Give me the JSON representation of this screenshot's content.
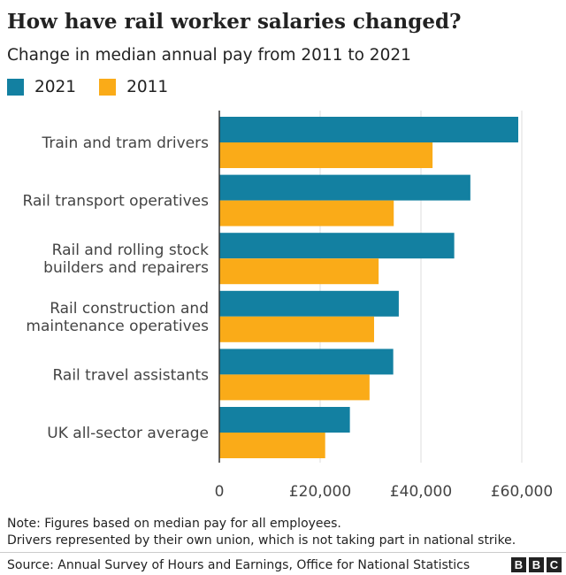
{
  "header": {
    "title": "How have rail worker salaries changed?",
    "subtitle": "Change in median annual pay from 2011 to 2021"
  },
  "legend": [
    {
      "label": "2021",
      "color": "#1380A1"
    },
    {
      "label": "2011",
      "color": "#FAAB18"
    }
  ],
  "chart_data": {
    "type": "bar",
    "orientation": "horizontal",
    "categories": [
      [
        "Train and tram drivers"
      ],
      [
        "Rail transport operatives"
      ],
      [
        "Rail and rolling stock",
        "builders and repairers"
      ],
      [
        "Rail construction and",
        "maintenance operatives"
      ],
      [
        "Rail travel assistants"
      ],
      [
        "UK all-sector average"
      ]
    ],
    "series": [
      {
        "name": "2021",
        "color": "#1380A1",
        "values": [
          59300,
          49800,
          46600,
          35600,
          34500,
          25900
        ]
      },
      {
        "name": "2011",
        "color": "#FAAB18",
        "values": [
          42300,
          34600,
          31600,
          30700,
          29800,
          21000
        ]
      }
    ],
    "xlim": [
      0,
      60000
    ],
    "xticks": [
      {
        "value": 0,
        "label": "0"
      },
      {
        "value": 20000,
        "label": "£20,000"
      },
      {
        "value": 40000,
        "label": "£40,000"
      },
      {
        "value": 60000,
        "label": "£60,000"
      }
    ],
    "grid": true,
    "legend_position": "top-left"
  },
  "notes": [
    "Note: Figures based on median pay for all employees.",
    "Drivers represented by their own union, which is not taking part in national strike."
  ],
  "footer": {
    "source": "Source: Annual Survey of Hours and Earnings, Office for National Statistics",
    "logo_letters": [
      "B",
      "B",
      "C"
    ]
  }
}
